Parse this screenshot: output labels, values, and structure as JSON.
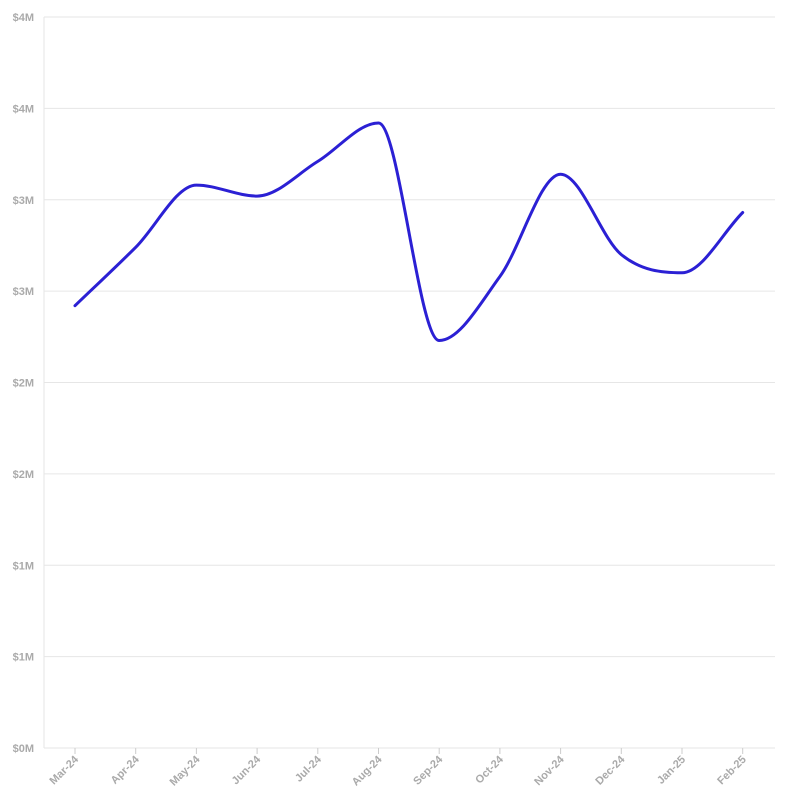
{
  "chart_data": {
    "type": "line",
    "title": "",
    "xlabel": "",
    "ylabel": "",
    "categories": [
      "Mar-24",
      "Apr-24",
      "May-24",
      "Jun-24",
      "Jul-24",
      "Aug-24",
      "Sep-24",
      "Oct-24",
      "Nov-24",
      "Dec-24",
      "Jan-25",
      "Feb-25"
    ],
    "y_tick_values": [
      0,
      500000,
      1000000,
      1500000,
      2000000,
      2500000,
      3000000,
      3500000,
      4000000
    ],
    "y_tick_labels": [
      "$0M",
      "$1M",
      "$1M",
      "$2M",
      "$2M",
      "$3M",
      "$3M",
      "$4M",
      "$4M"
    ],
    "ylim": [
      0,
      4000000
    ],
    "grid": true,
    "series": [
      {
        "color": "#2b20d4",
        "values": [
          2420000,
          2740000,
          3080000,
          3020000,
          3210000,
          3420000,
          2230000,
          2580000,
          3140000,
          2700000,
          2600000,
          2930000
        ]
      }
    ]
  }
}
